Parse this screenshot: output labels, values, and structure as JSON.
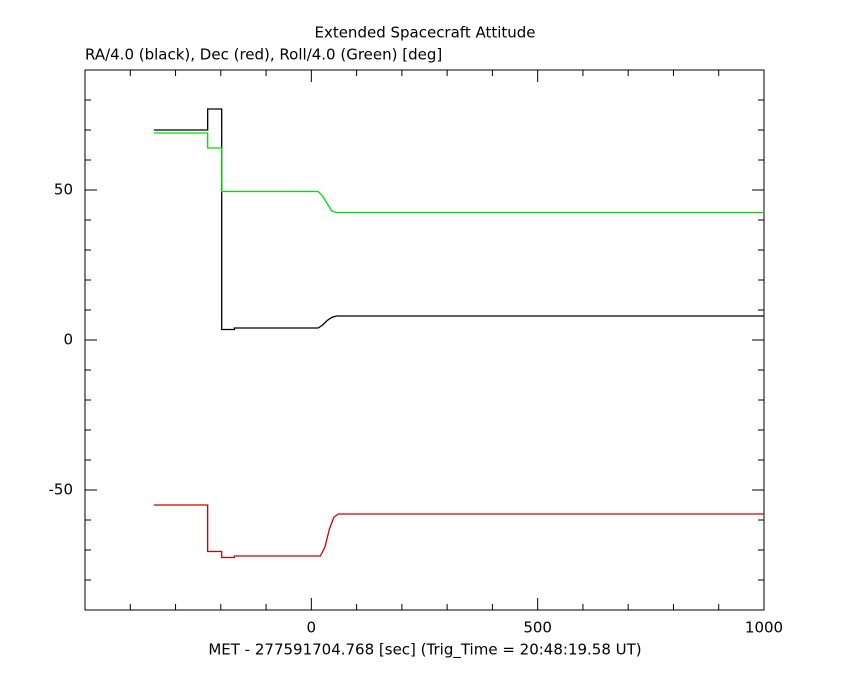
{
  "chart_data": {
    "type": "line",
    "title": "Extended Spacecraft Attitude",
    "subtitle": "RA/4.0 (black), Dec (red), Roll/4.0 (Green) [deg]",
    "x_label": "MET - 277591704.768 [sec] (Trig_Time = 20:48:19.58 UT)",
    "xlim": [
      -500,
      1000
    ],
    "ylim": [
      -90,
      90
    ],
    "xticks": [
      0,
      500,
      1000
    ],
    "yticks": [
      -50,
      0,
      50
    ],
    "xminorticks": [
      -400,
      -300,
      -200,
      -100,
      100,
      200,
      300,
      400,
      600,
      700,
      800,
      900
    ],
    "yminorticks": [
      -80,
      -70,
      -60,
      -40,
      -30,
      -20,
      -10,
      10,
      20,
      30,
      40,
      60,
      70,
      80
    ],
    "series": [
      {
        "color": "#000000",
        "x": [
          -348,
          -229,
          -229,
          -198,
          -198,
          -170,
          -170,
          15,
          25,
          35,
          45,
          55,
          1000
        ],
        "values": [
          70,
          70,
          77,
          77,
          3.5,
          3.5,
          4,
          4,
          5,
          6.5,
          7.5,
          8,
          8
        ]
      },
      {
        "color": "#00dd00",
        "x": [
          -348,
          -229,
          -229,
          -198,
          -198,
          15,
          25,
          35,
          45,
          55,
          1000
        ],
        "values": [
          69,
          69,
          64,
          64,
          49.5,
          49.5,
          48,
          45.5,
          43,
          42.5,
          42.5
        ]
      },
      {
        "color": "#cc0000",
        "x": [
          -348,
          -229,
          -229,
          -198,
          -198,
          -170,
          -170,
          20,
          30,
          40,
          50,
          60,
          1000
        ],
        "values": [
          -55,
          -55,
          -70.5,
          -70.5,
          -72.5,
          -72.5,
          -72,
          -72,
          -69,
          -63,
          -59,
          -58,
          -58
        ]
      }
    ]
  }
}
